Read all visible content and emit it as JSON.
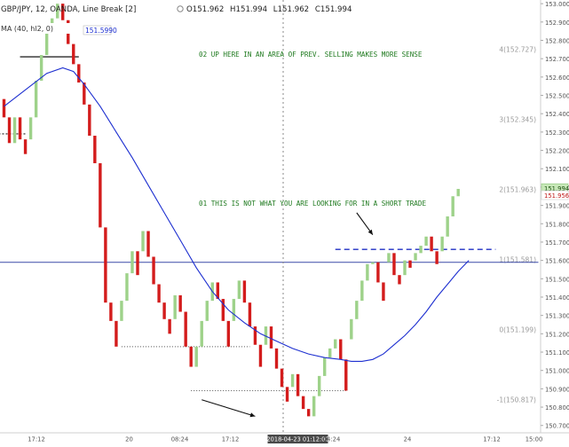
{
  "header": {
    "symbol": "GBP/JPY, 12, OANDA, Line Break [2]",
    "o_label": "O",
    "o_value": "151.962",
    "h_label": "H",
    "h_value": "151.994",
    "l_label": "L",
    "l_value": "151.962",
    "c_label": "C",
    "c_value": "151.994"
  },
  "ma_legend": {
    "label": "MA (40, hl2, 0)",
    "value": "151.5990"
  },
  "annotations": [
    {
      "id": "note-02",
      "text": "02 UP HERE IN AN AREA OF PREV. SELLING MAKES MORE SENSE"
    },
    {
      "id": "note-01",
      "text": "01 THIS IS NOT WHAT YOU ARE LOOKING FOR IN A SHORT TRADE"
    }
  ],
  "colors": {
    "up": "#9ed28a",
    "down": "#d31c1c",
    "ma": "#1d2fd0",
    "annotation": "#1f7a1f",
    "blue_dash": "#1f2fc4",
    "price_bg": "#c7e8b8"
  },
  "chart_data": {
    "type": "line-break",
    "title": "GBP/JPY, 12, OANDA, Line Break [2]",
    "ylim": [
      150.66,
      153.02
    ],
    "y_ticks": [
      "153.000",
      "152.900",
      "152.800",
      "152.700",
      "152.600",
      "152.500",
      "152.400",
      "152.300",
      "152.200",
      "152.100",
      "152.000",
      "151.900",
      "151.800",
      "151.700",
      "151.600",
      "151.500",
      "151.400",
      "151.300",
      "151.200",
      "151.100",
      "151.000",
      "150.900",
      "150.800",
      "150.700"
    ],
    "x_ticks": [
      {
        "label": "17:12",
        "x": 0
      },
      {
        "label": "20",
        "x": 11
      },
      {
        "label": "08:24",
        "x": 17
      },
      {
        "label": "17:12",
        "x": 23
      },
      {
        "label": "2018-04-23 01:12:00",
        "x": 31,
        "highlight": true
      },
      {
        "label": "04:24",
        "x": 35
      },
      {
        "label": "24",
        "x": 44
      },
      {
        "label": "17:12",
        "x": 54
      },
      {
        "label": "15:00",
        "x": 59
      }
    ],
    "fib_levels": [
      {
        "label": "4(152.727)",
        "value": 152.727
      },
      {
        "label": "3(152.345)",
        "value": 152.345
      },
      {
        "label": "2(151.963)",
        "value": 151.963
      },
      {
        "label": "1(151.581)",
        "value": 151.581
      },
      {
        "label": "0(151.199)",
        "value": 151.199
      },
      {
        "label": "-1(150.817)",
        "value": 150.817
      }
    ],
    "price_labels": [
      {
        "text": "151.994",
        "value": 151.994,
        "style": "current"
      },
      {
        "text": "151.956",
        "value": 151.956,
        "style": "secondary"
      }
    ],
    "bricks": [
      {
        "x": 0,
        "o": 152.48,
        "c": 152.38
      },
      {
        "x": 1,
        "o": 152.38,
        "c": 152.24
      },
      {
        "x": 2,
        "o": 152.24,
        "c": 152.38
      },
      {
        "x": 3,
        "o": 152.38,
        "c": 152.26
      },
      {
        "x": 4,
        "o": 152.26,
        "c": 152.18
      },
      {
        "x": 5,
        "o": 152.26,
        "c": 152.38
      },
      {
        "x": 6,
        "o": 152.38,
        "c": 152.58
      },
      {
        "x": 7,
        "o": 152.58,
        "c": 152.72
      },
      {
        "x": 8,
        "o": 152.72,
        "c": 152.84
      },
      {
        "x": 9,
        "o": 152.84,
        "c": 152.92
      },
      {
        "x": 10,
        "o": 152.92,
        "c": 153.0
      },
      {
        "x": 11,
        "o": 153.0,
        "c": 152.91
      },
      {
        "x": 12,
        "o": 152.91,
        "c": 152.78
      },
      {
        "x": 13,
        "o": 152.78,
        "c": 152.67
      },
      {
        "x": 14,
        "o": 152.67,
        "c": 152.57
      },
      {
        "x": 15,
        "o": 152.57,
        "c": 152.45
      },
      {
        "x": 16,
        "o": 152.45,
        "c": 152.28
      },
      {
        "x": 17,
        "o": 152.28,
        "c": 152.13
      },
      {
        "x": 18,
        "o": 152.13,
        "c": 151.78
      },
      {
        "x": 19,
        "o": 151.78,
        "c": 151.37
      },
      {
        "x": 20,
        "o": 151.37,
        "c": 151.27
      },
      {
        "x": 21,
        "o": 151.27,
        "c": 151.13
      },
      {
        "x": 22,
        "o": 151.27,
        "c": 151.38
      },
      {
        "x": 23,
        "o": 151.38,
        "c": 151.53
      },
      {
        "x": 24,
        "o": 151.53,
        "c": 151.65
      },
      {
        "x": 25,
        "o": 151.65,
        "c": 151.52
      },
      {
        "x": 26,
        "o": 151.65,
        "c": 151.76
      },
      {
        "x": 27,
        "o": 151.76,
        "c": 151.62
      },
      {
        "x": 28,
        "o": 151.62,
        "c": 151.47
      },
      {
        "x": 29,
        "o": 151.47,
        "c": 151.37
      },
      {
        "x": 30,
        "o": 151.37,
        "c": 151.28
      },
      {
        "x": 31,
        "o": 151.28,
        "c": 151.2
      },
      {
        "x": 32,
        "o": 151.28,
        "c": 151.41
      },
      {
        "x": 33,
        "o": 151.41,
        "c": 151.32
      },
      {
        "x": 34,
        "o": 151.32,
        "c": 151.13
      },
      {
        "x": 35,
        "o": 151.13,
        "c": 151.02
      },
      {
        "x": 36,
        "o": 151.02,
        "c": 151.13
      },
      {
        "x": 37,
        "o": 151.13,
        "c": 151.27
      },
      {
        "x": 38,
        "o": 151.27,
        "c": 151.38
      },
      {
        "x": 39,
        "o": 151.38,
        "c": 151.48
      },
      {
        "x": 40,
        "o": 151.48,
        "c": 151.39
      },
      {
        "x": 41,
        "o": 151.39,
        "c": 151.27
      },
      {
        "x": 42,
        "o": 151.27,
        "c": 151.13
      },
      {
        "x": 43,
        "o": 151.27,
        "c": 151.39
      },
      {
        "x": 44,
        "o": 151.39,
        "c": 151.49
      },
      {
        "x": 45,
        "o": 151.49,
        "c": 151.37
      },
      {
        "x": 46,
        "o": 151.37,
        "c": 151.24
      },
      {
        "x": 47,
        "o": 151.24,
        "c": 151.14
      },
      {
        "x": 48,
        "o": 151.14,
        "c": 151.02
      },
      {
        "x": 49,
        "o": 151.14,
        "c": 151.24
      },
      {
        "x": 50,
        "o": 151.24,
        "c": 151.12
      },
      {
        "x": 51,
        "o": 151.12,
        "c": 151.01
      },
      {
        "x": 52,
        "o": 151.01,
        "c": 150.91
      },
      {
        "x": 53,
        "o": 150.91,
        "c": 150.83
      },
      {
        "x": 54,
        "o": 150.91,
        "c": 150.98
      },
      {
        "x": 55,
        "o": 150.98,
        "c": 150.86
      },
      {
        "x": 56,
        "o": 150.86,
        "c": 150.79
      },
      {
        "x": 57,
        "o": 150.79,
        "c": 150.75
      },
      {
        "x": 58,
        "o": 150.75,
        "c": 150.86
      },
      {
        "x": 59,
        "o": 150.86,
        "c": 150.97
      },
      {
        "x": 60,
        "o": 150.97,
        "c": 151.07
      },
      {
        "x": 61,
        "o": 151.07,
        "c": 151.12
      },
      {
        "x": 62,
        "o": 151.12,
        "c": 151.17
      },
      {
        "x": 63,
        "o": 151.17,
        "c": 151.06
      },
      {
        "x": 64,
        "o": 151.06,
        "c": 150.89
      },
      {
        "x": 65,
        "o": 151.17,
        "c": 151.28
      },
      {
        "x": 66,
        "o": 151.28,
        "c": 151.38
      },
      {
        "x": 67,
        "o": 151.38,
        "c": 151.49
      },
      {
        "x": 68,
        "o": 151.49,
        "c": 151.58
      },
      {
        "x": 69,
        "o": 151.58,
        "c": 151.59
      },
      {
        "x": 70,
        "o": 151.59,
        "c": 151.48
      },
      {
        "x": 71,
        "o": 151.48,
        "c": 151.38
      },
      {
        "x": 72,
        "o": 151.59,
        "c": 151.64
      },
      {
        "x": 73,
        "o": 151.64,
        "c": 151.52
      },
      {
        "x": 74,
        "o": 151.52,
        "c": 151.47
      },
      {
        "x": 75,
        "o": 151.52,
        "c": 151.6
      },
      {
        "x": 76,
        "o": 151.6,
        "c": 151.56
      },
      {
        "x": 77,
        "o": 151.6,
        "c": 151.64
      },
      {
        "x": 78,
        "o": 151.64,
        "c": 151.68
      },
      {
        "x": 79,
        "o": 151.68,
        "c": 151.73
      },
      {
        "x": 80,
        "o": 151.73,
        "c": 151.65
      },
      {
        "x": 81,
        "o": 151.65,
        "c": 151.58
      },
      {
        "x": 82,
        "o": 151.65,
        "c": 151.73
      },
      {
        "x": 83,
        "o": 151.73,
        "c": 151.84
      },
      {
        "x": 84,
        "o": 151.84,
        "c": 151.95
      },
      {
        "x": 85,
        "o": 151.95,
        "c": 151.99
      }
    ],
    "moving_average": {
      "name": "MA (40, hl2, 0)",
      "points": [
        [
          0,
          152.44
        ],
        [
          4,
          152.53
        ],
        [
          8,
          152.62
        ],
        [
          11,
          152.65
        ],
        [
          13,
          152.63
        ],
        [
          15,
          152.56
        ],
        [
          18,
          152.44
        ],
        [
          21,
          152.3
        ],
        [
          24,
          152.16
        ],
        [
          27,
          152.01
        ],
        [
          30,
          151.86
        ],
        [
          33,
          151.71
        ],
        [
          36,
          151.56
        ],
        [
          39,
          151.43
        ],
        [
          42,
          151.33
        ],
        [
          45,
          151.26
        ],
        [
          48,
          151.2
        ],
        [
          51,
          151.16
        ],
        [
          54,
          151.12
        ],
        [
          57,
          151.09
        ],
        [
          60,
          151.07
        ],
        [
          63,
          151.06
        ],
        [
          65,
          151.05
        ],
        [
          67,
          151.05
        ],
        [
          69,
          151.06
        ],
        [
          71,
          151.09
        ],
        [
          73,
          151.14
        ],
        [
          75,
          151.19
        ],
        [
          77,
          151.25
        ],
        [
          79,
          151.32
        ],
        [
          81,
          151.4
        ],
        [
          83,
          151.47
        ],
        [
          85,
          151.54
        ],
        [
          87,
          151.6
        ]
      ]
    },
    "lines": [
      {
        "id": "resistance-line",
        "from": [
          3,
          152.71
        ],
        "to": [
          14,
          152.71
        ],
        "color": "#2a2a2a",
        "width": 1.4,
        "dash": ""
      },
      {
        "id": "left-red-dash",
        "from": [
          -1,
          152.29
        ],
        "to": [
          4,
          152.29
        ],
        "color": "#222222",
        "width": 1.2,
        "dash": "2,2"
      },
      {
        "id": "support-dotted",
        "from": [
          22,
          151.13
        ],
        "to": [
          46,
          151.13
        ],
        "color": "#555555",
        "width": 1,
        "dash": "1,2"
      },
      {
        "id": "low-dotted",
        "from": [
          35,
          150.89
        ],
        "to": [
          64,
          150.89
        ],
        "color": "#555555",
        "width": 1,
        "dash": "1,2"
      },
      {
        "id": "blue-dashed",
        "from": [
          62,
          151.66
        ],
        "to": [
          92,
          151.66
        ],
        "color": "#1f2fc4",
        "width": 1.4,
        "dash": "6,4"
      },
      {
        "id": "horizontal-ref",
        "from": [
          -2,
          151.59
        ],
        "to": [
          100,
          151.59
        ],
        "color": "#3b4aa8",
        "width": 1,
        "dash": ""
      }
    ],
    "arrows": [
      {
        "id": "down-arrow",
        "from": [
          37,
          150.84
        ],
        "to": [
          47,
          150.75
        ]
      },
      {
        "id": "up-arrow",
        "from": [
          66,
          151.86
        ],
        "to": [
          69,
          151.74
        ]
      }
    ]
  }
}
